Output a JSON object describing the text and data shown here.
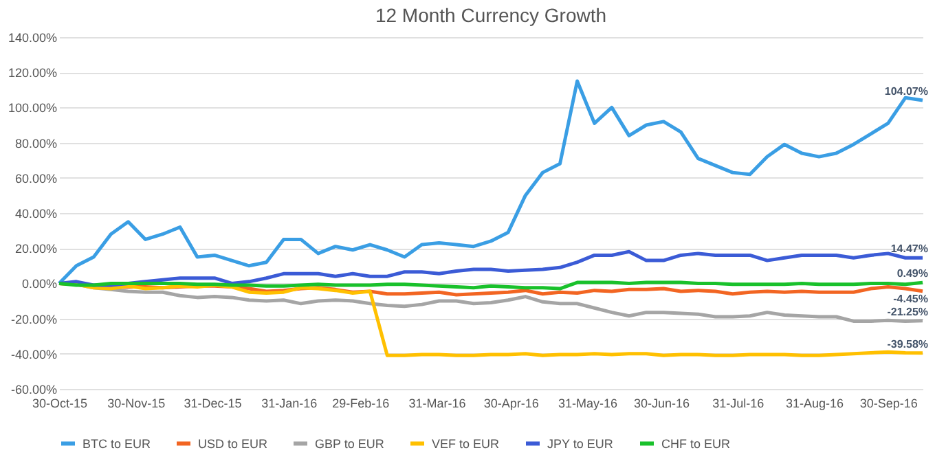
{
  "chart_data": {
    "type": "line",
    "title": "12 Month Currency Growth",
    "x": [
      "2015-10-30",
      "2015-11-06",
      "2015-11-13",
      "2015-11-20",
      "2015-11-27",
      "2015-12-04",
      "2015-12-11",
      "2015-12-18",
      "2015-12-25",
      "2016-01-01",
      "2016-01-08",
      "2016-01-15",
      "2016-01-22",
      "2016-01-29",
      "2016-02-05",
      "2016-02-12",
      "2016-02-19",
      "2016-02-26",
      "2016-03-04",
      "2016-03-11",
      "2016-03-18",
      "2016-03-25",
      "2016-04-01",
      "2016-04-08",
      "2016-04-15",
      "2016-04-22",
      "2016-04-29",
      "2016-05-06",
      "2016-05-13",
      "2016-05-20",
      "2016-05-27",
      "2016-06-03",
      "2016-06-10",
      "2016-06-17",
      "2016-06-24",
      "2016-07-01",
      "2016-07-08",
      "2016-07-15",
      "2016-07-22",
      "2016-07-29",
      "2016-08-05",
      "2016-08-12",
      "2016-08-19",
      "2016-08-26",
      "2016-09-02",
      "2016-09-09",
      "2016-09-16",
      "2016-09-23",
      "2016-09-30",
      "2016-10-07",
      "2016-10-14"
    ],
    "series": [
      {
        "name": "BTC to EUR",
        "color": "#3a9ee4",
        "values": [
          0,
          10,
          15,
          28,
          35,
          25,
          28,
          32,
          15,
          16,
          13,
          10,
          12,
          25,
          25,
          17,
          21,
          19,
          22,
          19,
          15,
          22,
          23,
          22,
          21,
          24,
          29,
          50,
          63,
          68,
          115,
          91,
          100,
          84,
          90,
          92,
          86,
          71,
          67,
          63,
          62,
          72,
          79,
          74,
          72,
          74,
          79,
          85,
          91,
          105.5,
          104.07
        ],
        "value_labels": [
          null,
          null,
          null,
          null,
          null,
          null,
          null,
          null,
          null,
          null,
          null,
          null,
          null,
          null,
          null,
          null,
          null,
          null,
          null,
          null,
          null,
          null,
          null,
          null,
          null,
          null,
          null,
          null,
          null,
          null,
          null,
          null,
          null,
          null,
          null,
          null,
          null,
          null,
          null,
          null,
          null,
          null,
          null,
          null,
          null,
          null,
          null,
          null,
          null,
          null,
          "104.07%"
        ]
      },
      {
        "name": "USD to EUR",
        "color": "#f26522",
        "values": [
          0,
          -0.5,
          -2,
          -2.5,
          -2,
          -2,
          -2.5,
          -2,
          -1.5,
          -1.5,
          -2,
          -3,
          -4.5,
          -4,
          -3,
          -2.5,
          -3.5,
          -5,
          -4.5,
          -6,
          -6,
          -5.5,
          -5,
          -6.5,
          -6,
          -5.5,
          -5,
          -4,
          -6,
          -5,
          -5.5,
          -4,
          -4.5,
          -3.5,
          -3.5,
          -3,
          -4.5,
          -4,
          -4.5,
          -6,
          -5,
          -4.5,
          -5,
          -4.5,
          -5,
          -5,
          -5,
          -3,
          -2,
          -3,
          -4.45
        ],
        "value_labels": [
          null,
          null,
          null,
          null,
          null,
          null,
          null,
          null,
          null,
          null,
          null,
          null,
          null,
          null,
          null,
          null,
          null,
          null,
          null,
          null,
          null,
          null,
          null,
          null,
          null,
          null,
          null,
          null,
          null,
          null,
          null,
          null,
          null,
          null,
          null,
          null,
          null,
          null,
          null,
          null,
          null,
          null,
          null,
          null,
          null,
          null,
          null,
          null,
          null,
          null,
          "-4.45%"
        ]
      },
      {
        "name": "GBP to EUR",
        "color": "#a5a5a5",
        "values": [
          0,
          -0.5,
          -2.5,
          -3.5,
          -4.5,
          -5,
          -5,
          -7,
          -8,
          -7.5,
          -8,
          -9.5,
          -10,
          -9.5,
          -11.5,
          -10,
          -9.5,
          -10,
          -11.5,
          -12.5,
          -13,
          -12,
          -10,
          -10,
          -11.5,
          -11,
          -9.5,
          -7.5,
          -10.5,
          -11.5,
          -11.5,
          -14,
          -16.5,
          -18.5,
          -16.5,
          -16.5,
          -17,
          -17.5,
          -19,
          -19,
          -18.5,
          -16.5,
          -18,
          -18.5,
          -19,
          -19,
          -21.5,
          -21.5,
          -21,
          -21.5,
          -21.25
        ],
        "value_labels": [
          null,
          null,
          null,
          null,
          null,
          null,
          null,
          null,
          null,
          null,
          null,
          null,
          null,
          null,
          null,
          null,
          null,
          null,
          null,
          null,
          null,
          null,
          null,
          null,
          null,
          null,
          null,
          null,
          null,
          null,
          null,
          null,
          null,
          null,
          null,
          null,
          null,
          null,
          null,
          null,
          null,
          null,
          null,
          null,
          null,
          null,
          null,
          null,
          null,
          null,
          "-21.25%"
        ]
      },
      {
        "name": "VEF to EUR",
        "color": "#ffc000",
        "values": [
          0,
          -0.5,
          -2.5,
          -3,
          -1.5,
          -3,
          -2.5,
          -1.5,
          -2,
          -1,
          -2,
          -5,
          -5.5,
          -5,
          -2.5,
          -3,
          -4,
          -5.5,
          -4.5,
          -41,
          -41,
          -40.5,
          -40.5,
          -41,
          -41,
          -40.5,
          -40.5,
          -40,
          -41,
          -40.5,
          -40.5,
          -40,
          -40.5,
          -40,
          -40,
          -41,
          -40.5,
          -40.5,
          -41,
          -41,
          -40.5,
          -40.5,
          -40.5,
          -41,
          -41,
          -40.5,
          -40,
          -39.5,
          -39,
          -39.5,
          -39.58
        ],
        "value_labels": [
          null,
          null,
          null,
          null,
          null,
          null,
          null,
          null,
          null,
          null,
          null,
          null,
          null,
          null,
          null,
          null,
          null,
          null,
          null,
          null,
          null,
          null,
          null,
          null,
          null,
          null,
          null,
          null,
          null,
          null,
          null,
          null,
          null,
          null,
          null,
          null,
          null,
          null,
          null,
          null,
          null,
          null,
          null,
          null,
          null,
          null,
          null,
          null,
          null,
          null,
          "-39.58%"
        ]
      },
      {
        "name": "JPY to EUR",
        "color": "#3b5bd6",
        "values": [
          0,
          1,
          -1,
          -1,
          0,
          1,
          2,
          3,
          3,
          3,
          0,
          1,
          3,
          5.5,
          5.5,
          5.5,
          4,
          5.5,
          4,
          4,
          6.5,
          6.5,
          5.5,
          7,
          8,
          8,
          7,
          7.5,
          8,
          9,
          12,
          16,
          16,
          18,
          13,
          13,
          16,
          17,
          16,
          16,
          16,
          13,
          14.5,
          16,
          16,
          16,
          14.5,
          16,
          17,
          14.5,
          14.47
        ],
        "value_labels": [
          null,
          null,
          null,
          null,
          null,
          null,
          null,
          null,
          null,
          null,
          null,
          null,
          null,
          null,
          null,
          null,
          null,
          null,
          null,
          null,
          null,
          null,
          null,
          null,
          null,
          null,
          null,
          null,
          null,
          null,
          null,
          null,
          null,
          null,
          null,
          null,
          null,
          null,
          null,
          null,
          null,
          null,
          null,
          null,
          null,
          null,
          null,
          null,
          null,
          null,
          "14.47%"
        ]
      },
      {
        "name": "CHF to EUR",
        "color": "#19c12b",
        "values": [
          0,
          -1,
          -1,
          0,
          0,
          0,
          0,
          0,
          -0.5,
          -0.5,
          -1,
          -1,
          -1.5,
          -1.5,
          -1,
          -0.5,
          -1,
          -1,
          -1,
          -0.5,
          -0.5,
          -1,
          -1.5,
          -2,
          -2.5,
          -1.5,
          -2,
          -2.5,
          -2.5,
          -3,
          0.5,
          0.5,
          0.5,
          0,
          0.5,
          0.5,
          0.5,
          0,
          0,
          -0.5,
          -0.5,
          -0.5,
          -0.5,
          0,
          -0.5,
          -0.5,
          -0.5,
          0,
          0,
          -0.5,
          0.49
        ],
        "value_labels": [
          null,
          null,
          null,
          null,
          null,
          null,
          null,
          null,
          null,
          null,
          null,
          null,
          null,
          null,
          null,
          null,
          null,
          null,
          null,
          null,
          null,
          null,
          null,
          null,
          null,
          null,
          null,
          null,
          null,
          null,
          null,
          null,
          null,
          null,
          null,
          null,
          null,
          null,
          null,
          null,
          null,
          null,
          null,
          null,
          null,
          null,
          null,
          null,
          null,
          null,
          "0.49%"
        ]
      }
    ],
    "xlim": [
      "2015-10-30",
      "2016-10-14"
    ],
    "xticks": [
      {
        "value": "2015-10-30",
        "label": "30-Oct-15"
      },
      {
        "value": "2015-11-30",
        "label": "30-Nov-15"
      },
      {
        "value": "2015-12-31",
        "label": "31-Dec-15"
      },
      {
        "value": "2016-01-31",
        "label": "31-Jan-16"
      },
      {
        "value": "2016-02-29",
        "label": "29-Feb-16"
      },
      {
        "value": "2016-03-31",
        "label": "31-Mar-16"
      },
      {
        "value": "2016-04-30",
        "label": "30-Apr-16"
      },
      {
        "value": "2016-05-31",
        "label": "31-May-16"
      },
      {
        "value": "2016-06-30",
        "label": "30-Jun-16"
      },
      {
        "value": "2016-07-31",
        "label": "31-Jul-16"
      },
      {
        "value": "2016-08-31",
        "label": "31-Aug-16"
      },
      {
        "value": "2016-09-30",
        "label": "30-Sep-16"
      }
    ],
    "ylim": [
      -60,
      140
    ],
    "yticks": [
      {
        "value": -60,
        "label": "-60.00%"
      },
      {
        "value": -40,
        "label": "-40.00%"
      },
      {
        "value": -20,
        "label": "-20.00%"
      },
      {
        "value": 0,
        "label": "0.00%"
      },
      {
        "value": 20,
        "label": "20.00%"
      },
      {
        "value": 40,
        "label": "40.00%"
      },
      {
        "value": 60,
        "label": "60.00%"
      },
      {
        "value": 80,
        "label": "80.00%"
      },
      {
        "value": 100,
        "label": "100.00%"
      },
      {
        "value": 120,
        "label": "120.00%"
      },
      {
        "value": 140,
        "label": "140.00%"
      }
    ],
    "grid": "y",
    "legend": "bottom",
    "marker": "none",
    "line_style": "solid"
  }
}
